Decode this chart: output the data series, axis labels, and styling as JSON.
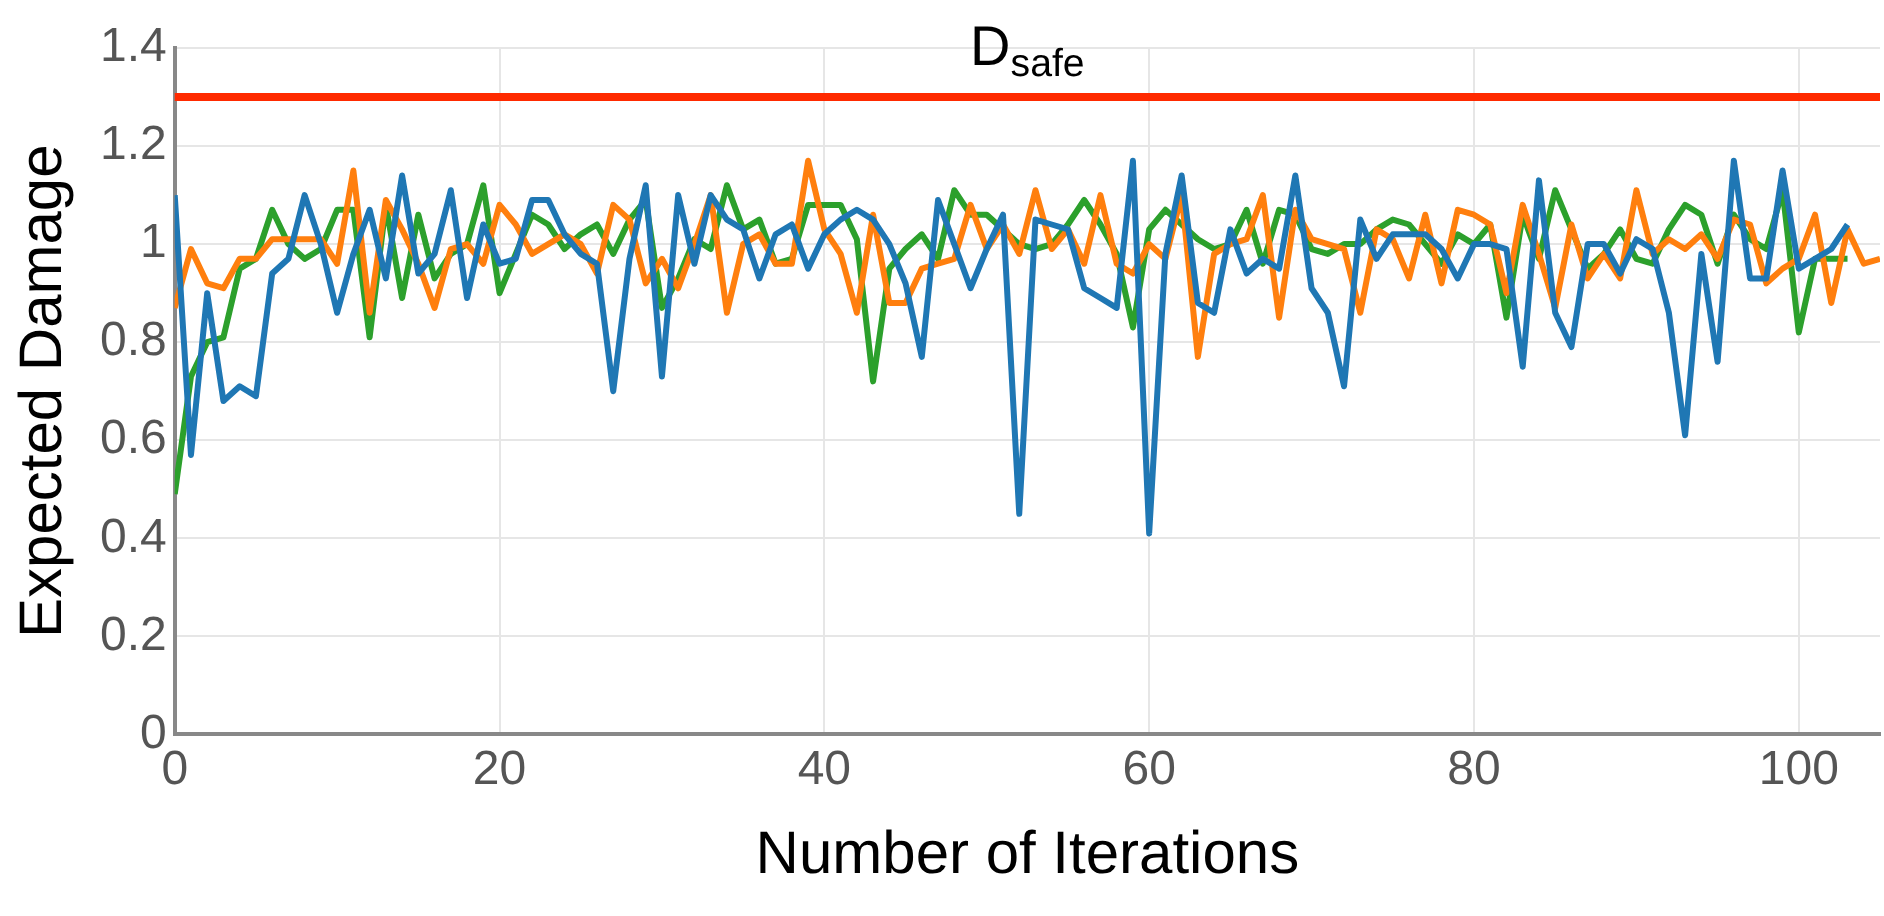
{
  "chart_data": {
    "type": "line",
    "xlabel": "Number of Iterations",
    "ylabel": "Expected Damage",
    "x": [
      0,
      1,
      2,
      3,
      4,
      5,
      6,
      7,
      8,
      9,
      10,
      11,
      12,
      13,
      14,
      15,
      16,
      17,
      18,
      19,
      20,
      21,
      22,
      23,
      24,
      25,
      26,
      27,
      28,
      29,
      30,
      31,
      32,
      33,
      34,
      35,
      36,
      37,
      38,
      39,
      40,
      41,
      42,
      43,
      44,
      45,
      46,
      47,
      48,
      49,
      50,
      51,
      52,
      53,
      54,
      55,
      56,
      57,
      58,
      59,
      60,
      61,
      62,
      63,
      64,
      65,
      66,
      67,
      68,
      69,
      70,
      71,
      72,
      73,
      74,
      75,
      76,
      77,
      78,
      79,
      80,
      81,
      82,
      83,
      84,
      85,
      86,
      87,
      88,
      89,
      90,
      91,
      92,
      93,
      94,
      95,
      96,
      97,
      98,
      99,
      100,
      101,
      102,
      103,
      104,
      105
    ],
    "series": [
      {
        "color": "#1f77b4",
        "values": [
          1.1,
          0.57,
          0.9,
          0.68,
          0.71,
          0.69,
          0.94,
          0.97,
          1.1,
          1.0,
          0.86,
          0.98,
          1.07,
          0.93,
          1.14,
          0.94,
          0.98,
          1.11,
          0.89,
          1.04,
          0.96,
          0.97,
          1.09,
          1.09,
          1.02,
          0.98,
          0.96,
          0.7,
          0.97,
          1.12,
          0.73,
          1.1,
          0.96,
          1.1,
          1.05,
          1.03,
          0.93,
          1.02,
          1.04,
          0.95,
          1.02,
          1.05,
          1.07,
          1.05,
          1.0,
          0.92,
          0.77,
          1.09,
          1.0,
          0.91,
          0.99,
          1.06,
          0.45,
          1.05,
          1.04,
          1.03,
          0.91,
          0.89,
          0.87,
          1.17,
          0.41,
          0.98,
          1.14,
          0.88,
          0.86,
          1.03,
          0.94,
          0.97,
          0.95,
          1.14,
          0.91,
          0.86,
          0.71,
          1.05,
          0.97,
          1.02,
          1.02,
          1.02,
          0.99,
          0.93,
          1.0,
          1.0,
          0.99,
          0.75,
          1.13,
          0.86,
          0.79,
          1.0,
          1.0,
          0.94,
          1.01,
          0.99,
          0.86,
          0.61,
          0.98,
          0.76,
          1.17,
          0.93,
          0.93,
          1.15,
          0.95,
          0.97,
          0.99,
          1.04,
          null,
          null
        ]
      },
      {
        "color": "#ff7f0e",
        "values": [
          0.87,
          0.99,
          0.92,
          0.91,
          0.97,
          0.97,
          1.01,
          1.01,
          1.01,
          1.01,
          0.96,
          1.15,
          0.86,
          1.09,
          1.03,
          0.96,
          0.87,
          0.99,
          1.0,
          0.96,
          1.08,
          1.04,
          0.98,
          1.0,
          1.02,
          1.0,
          0.94,
          1.08,
          1.05,
          0.92,
          0.97,
          0.91,
          1.0,
          1.1,
          0.86,
          1.0,
          1.02,
          0.96,
          0.96,
          1.17,
          1.03,
          0.98,
          0.86,
          1.06,
          0.88,
          0.88,
          0.95,
          0.96,
          0.97,
          1.08,
          0.99,
          1.04,
          0.98,
          1.11,
          0.99,
          1.03,
          0.96,
          1.1,
          0.96,
          0.94,
          1.0,
          0.97,
          1.1,
          0.77,
          0.98,
          1.0,
          1.01,
          1.1,
          0.85,
          1.07,
          1.01,
          1.0,
          0.99,
          0.86,
          1.03,
          1.01,
          0.93,
          1.06,
          0.92,
          1.07,
          1.06,
          1.04,
          0.9,
          1.08,
          0.98,
          0.87,
          1.04,
          0.93,
          0.98,
          0.93,
          1.11,
          0.98,
          1.01,
          0.99,
          1.02,
          0.97,
          1.05,
          1.04,
          0.92,
          0.95,
          0.97,
          1.06,
          0.88,
          1.03,
          0.96,
          0.97
        ]
      },
      {
        "color": "#2ca02c",
        "values": [
          0.49,
          0.73,
          0.8,
          0.81,
          0.95,
          0.97,
          1.07,
          1.0,
          0.97,
          0.99,
          1.07,
          1.07,
          0.81,
          1.08,
          0.89,
          1.06,
          0.93,
          0.98,
          1.0,
          1.12,
          0.9,
          0.98,
          1.06,
          1.04,
          0.99,
          1.02,
          1.04,
          0.98,
          1.05,
          1.09,
          0.87,
          0.93,
          1.01,
          0.99,
          1.12,
          1.03,
          1.05,
          0.96,
          0.97,
          1.08,
          1.08,
          1.08,
          1.01,
          0.72,
          0.95,
          0.99,
          1.02,
          0.97,
          1.11,
          1.06,
          1.06,
          1.03,
          1.0,
          0.99,
          1.0,
          1.04,
          1.09,
          1.04,
          0.98,
          0.83,
          1.03,
          1.07,
          1.04,
          1.01,
          0.99,
          1.0,
          1.07,
          0.96,
          1.07,
          1.06,
          0.99,
          0.98,
          1.0,
          1.0,
          1.03,
          1.05,
          1.04,
          1.0,
          0.96,
          1.02,
          1.0,
          1.04,
          0.85,
          1.06,
          0.97,
          1.11,
          1.03,
          0.95,
          0.98,
          1.03,
          0.97,
          0.96,
          1.03,
          1.08,
          1.06,
          0.96,
          1.06,
          1.01,
          0.99,
          1.11,
          0.82,
          0.97,
          0.97,
          0.97,
          null,
          null
        ]
      }
    ],
    "xlim": [
      0,
      105
    ],
    "xticks": [
      0,
      20,
      40,
      60,
      80,
      100
    ],
    "ylim": [
      0,
      1.4
    ],
    "yticks": [
      0,
      0.2,
      0.4,
      0.6,
      0.8,
      1,
      1.2,
      1.4
    ],
    "ref_lines": [
      {
        "axis": "y",
        "value": 1.3,
        "label": "D$_{safe}$",
        "color": "#ff2a00"
      }
    ],
    "grid": true,
    "legend": false,
    "marker": "none",
    "line_style": "solid"
  }
}
